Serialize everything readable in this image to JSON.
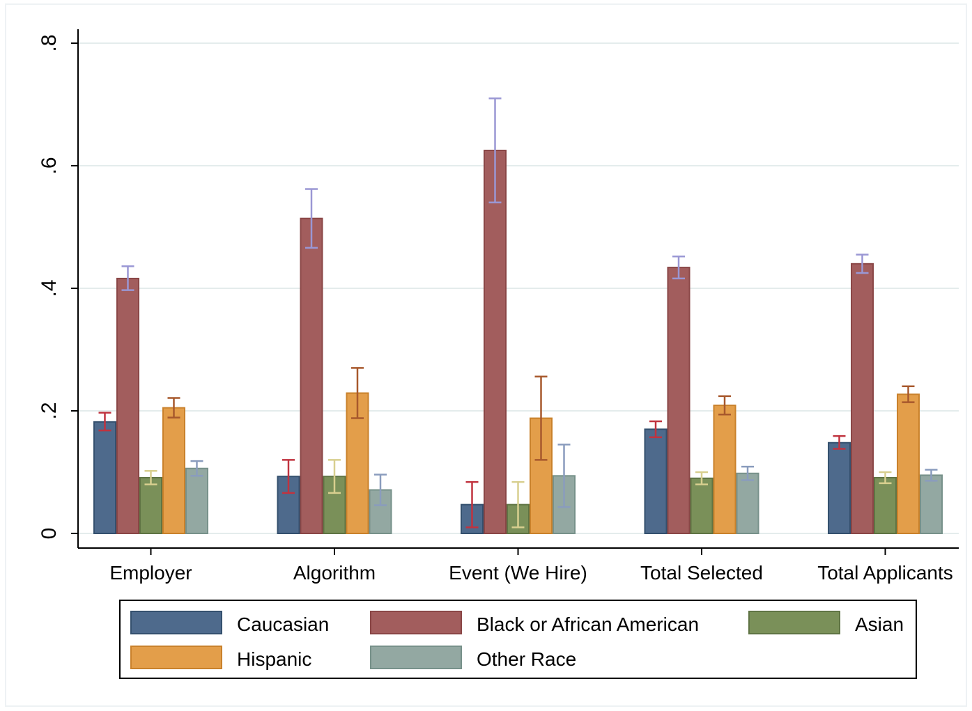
{
  "chart_data": {
    "type": "bar",
    "categories": [
      "Employer",
      "Algorithm",
      "Event (We Hire)",
      "Total Selected",
      "Total Applicants"
    ],
    "series": [
      {
        "name": "Caucasian",
        "values": [
          0.182,
          0.093,
          0.047,
          0.17,
          0.148
        ],
        "ci_low": [
          0.168,
          0.066,
          0.01,
          0.157,
          0.138
        ],
        "ci_high": [
          0.197,
          0.12,
          0.084,
          0.183,
          0.159
        ]
      },
      {
        "name": "Black or African American",
        "values": [
          0.416,
          0.514,
          0.625,
          0.434,
          0.44
        ],
        "ci_low": [
          0.397,
          0.466,
          0.54,
          0.416,
          0.425
        ],
        "ci_high": [
          0.436,
          0.562,
          0.71,
          0.452,
          0.455
        ]
      },
      {
        "name": "Asian",
        "values": [
          0.091,
          0.093,
          0.047,
          0.09,
          0.091
        ],
        "ci_low": [
          0.08,
          0.066,
          0.01,
          0.08,
          0.082
        ],
        "ci_high": [
          0.102,
          0.12,
          0.084,
          0.1,
          0.1
        ]
      },
      {
        "name": "Hispanic",
        "values": [
          0.205,
          0.229,
          0.188,
          0.209,
          0.227
        ],
        "ci_low": [
          0.189,
          0.188,
          0.12,
          0.194,
          0.214
        ],
        "ci_high": [
          0.221,
          0.27,
          0.256,
          0.224,
          0.24
        ]
      },
      {
        "name": "Other Race",
        "values": [
          0.106,
          0.071,
          0.094,
          0.098,
          0.095
        ],
        "ci_low": [
          0.094,
          0.046,
          0.043,
          0.087,
          0.086
        ],
        "ci_high": [
          0.118,
          0.096,
          0.145,
          0.109,
          0.104
        ]
      }
    ],
    "bar_colors": [
      "#4e6a8c",
      "#a25d5d",
      "#7a9059",
      "#e39e4a",
      "#93a8a2"
    ],
    "bar_edge_colors": [
      "#34506e",
      "#8a4646",
      "#5f7444",
      "#c9812b",
      "#77918a"
    ],
    "errorbar_colors": [
      "#c0333f",
      "#9a97d4",
      "#d8cf8f",
      "#a7582c",
      "#8a9cbd"
    ],
    "ylim": [
      0,
      0.8
    ],
    "yticks": [
      0,
      0.2,
      0.4,
      0.6,
      0.8
    ],
    "ytick_labels": [
      "0",
      ".2",
      ".4",
      ".6",
      ".8"
    ],
    "grid": true,
    "legend_position": "bottom",
    "title": "",
    "xlabel": "",
    "ylabel": ""
  }
}
